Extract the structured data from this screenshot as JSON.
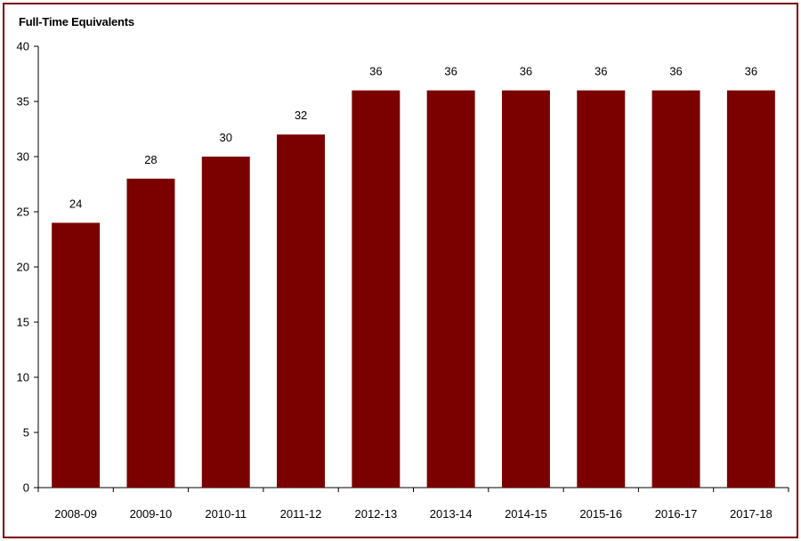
{
  "chart_data": {
    "type": "bar",
    "title": "Full-Time Equivalents",
    "xlabel": "",
    "ylabel": "",
    "categories": [
      "2008-09",
      "2009-10",
      "2010-11",
      "2011-12",
      "2012-13",
      "2013-14",
      "2014-15",
      "2015-16",
      "2016-17",
      "2017-18"
    ],
    "values": [
      24,
      28,
      30,
      32,
      36,
      36,
      36,
      36,
      36,
      36
    ],
    "ylim": [
      0,
      40
    ],
    "yticks": [
      0,
      5,
      10,
      15,
      20,
      25,
      30,
      35,
      40
    ],
    "grid": false,
    "legend": "none",
    "data_labels": true,
    "bar_color": "#7b0000",
    "frame_color": "#7b0000"
  }
}
